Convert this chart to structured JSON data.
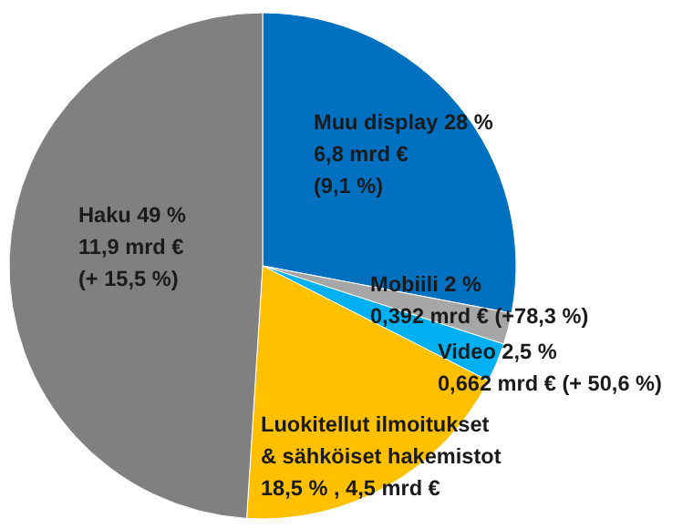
{
  "chart_data": {
    "type": "pie",
    "categories": [
      "Muu display",
      "Mobiili",
      "Video",
      "Luokitellut ilmoitukset\n& sähköiset hakemistot",
      "Haku"
    ],
    "values": [
      28,
      2,
      2.5,
      18.5,
      49
    ],
    "colors": [
      "#0070c0",
      "#a6a6a6",
      "#00b0f0",
      "#ffc000",
      "#808080"
    ],
    "value_labels": [
      "28 %\n6,8 mrd €\n(9,1 %)",
      "2 %\n0,392 mrd € (+78,3 %)",
      "2,5 %\n0,662 mrd € (+ 50,6 %)",
      "18,5 % , 4,5 mrd €",
      "49 %\n11,9 mrd €\n(+ 15,5 %)"
    ],
    "legend": false
  }
}
